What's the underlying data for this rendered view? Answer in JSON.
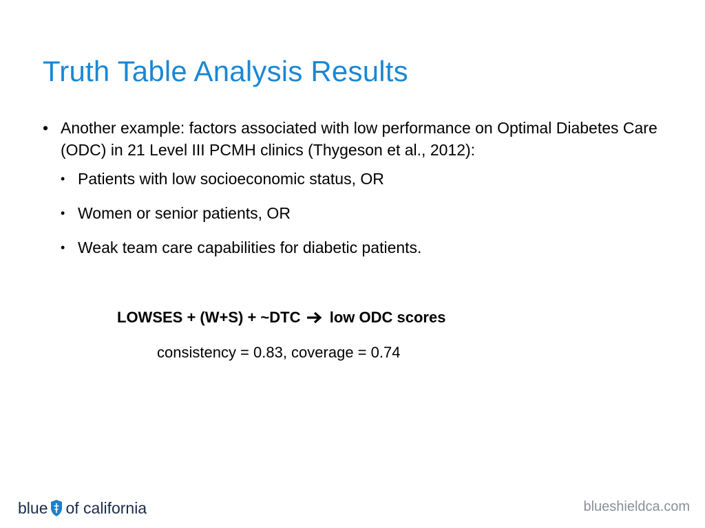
{
  "slide": {
    "title": "Truth Table Analysis Results",
    "main_bullet": "Another example:  factors associated with low performance on Optimal Diabetes Care (ODC) in 21 Level III PCMH clinics (Thygeson et al., 2012):",
    "sub_bullets": [
      "Patients with low socioeconomic status, OR",
      "Women or senior patients, OR",
      "Weak team care capabilities for diabetic patients."
    ],
    "formula_left": "LOWSES + (W+S) + ~DTC",
    "formula_arrow_icon": "right-arrow-icon",
    "formula_right": "low ODC scores",
    "stats": "consistency = 0.83, coverage = 0.74"
  },
  "footer": {
    "logo_left": "blue",
    "logo_icon": "shield-icon",
    "logo_right": "of california",
    "url": "blueshieldca.com"
  },
  "colors": {
    "title": "#1a87d5",
    "logo": "#1c2b4a",
    "shield": "#1f7fc9",
    "url": "#8a8f96"
  }
}
